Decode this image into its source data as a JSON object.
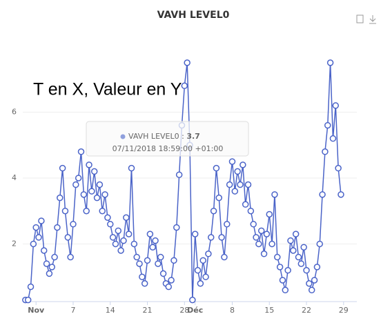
{
  "chart_data": {
    "type": "line",
    "title": "VAVH LEVEL0",
    "annotation": "T en X, Valeur en Y",
    "tooltip": {
      "series": "VAVH LEVEL0",
      "value": 3.7,
      "time": "07/11/2018 18:59:00 +01:00"
    },
    "x": [
      -2,
      -1.5,
      -1,
      -0.5,
      0,
      0.5,
      1,
      1.5,
      2,
      2.5,
      3,
      3.5,
      4,
      4.5,
      5,
      5.5,
      6,
      6.5,
      7,
      7.5,
      8,
      8.5,
      9,
      9.5,
      10,
      10.5,
      11,
      11.5,
      12,
      12.5,
      13,
      13.5,
      14,
      14.5,
      15,
      15.5,
      16,
      16.5,
      17,
      17.5,
      18,
      18.5,
      19,
      19.5,
      20,
      20.5,
      21,
      21.5,
      22,
      22.5,
      23,
      23.5,
      24,
      24.5,
      25,
      25.5,
      26,
      26.5,
      27,
      27.5,
      28,
      28.5,
      29,
      29.5,
      30,
      30.5,
      31,
      31.5,
      32,
      32.5,
      33,
      33.5,
      34,
      34.5,
      35,
      35.5,
      36,
      36.5,
      37,
      37.5,
      38,
      38.5,
      39,
      39.5,
      40,
      40.5,
      41,
      41.5,
      42,
      42.5,
      43,
      43.5,
      44,
      44.5,
      45,
      45.5,
      46,
      46.5,
      47,
      47.5,
      48,
      48.5,
      49,
      49.5,
      50,
      50.5,
      51,
      51.5,
      52,
      52.5,
      53,
      53.5,
      54,
      54.5,
      55,
      55.5,
      56,
      56.5,
      57,
      57.5
    ],
    "series": [
      {
        "name": "VAVH LEVEL0",
        "color": "#4a63c8",
        "values": [
          0.3,
          0.3,
          0.7,
          2.0,
          2.5,
          2.2,
          2.7,
          1.8,
          1.4,
          1.1,
          1.3,
          1.6,
          2.5,
          3.4,
          4.3,
          3.0,
          2.2,
          1.6,
          2.6,
          3.8,
          4.0,
          4.8,
          3.5,
          3.0,
          4.4,
          3.6,
          4.2,
          3.4,
          3.8,
          3.0,
          3.5,
          2.8,
          2.6,
          2.2,
          2.0,
          2.4,
          1.8,
          2.1,
          2.8,
          2.3,
          4.3,
          2.0,
          1.6,
          1.4,
          1.0,
          0.8,
          1.5,
          2.3,
          1.9,
          2.1,
          1.4,
          1.6,
          1.1,
          0.8,
          0.7,
          0.9,
          1.5,
          2.5,
          4.1,
          5.6,
          6.8,
          7.5,
          5.0,
          0.3,
          2.3,
          1.2,
          0.8,
          1.5,
          1.0,
          1.7,
          2.2,
          3.0,
          4.3,
          3.4,
          2.2,
          1.6,
          2.6,
          3.8,
          4.5,
          3.6,
          4.2,
          3.8,
          4.4,
          3.2,
          3.8,
          3.0,
          2.6,
          2.2,
          2.0,
          2.4,
          1.7,
          2.3,
          2.9,
          2.0,
          3.5,
          1.6,
          1.3,
          0.9,
          0.6,
          1.2,
          2.1,
          1.8,
          2.3,
          1.6,
          1.4,
          1.9,
          1.2,
          0.8,
          0.6,
          0.9,
          1.3,
          2.0,
          3.5,
          4.8,
          5.6,
          7.5,
          5.2,
          6.2,
          4.3,
          3.5
        ]
      }
    ],
    "xlim": [
      -2.5,
      60.5
    ],
    "xticks": [
      {
        "value": 0,
        "label": "Nov"
      },
      7,
      14,
      21,
      28,
      {
        "value": 30,
        "label": "Déc"
      },
      {
        "value": 37,
        "label": "8"
      },
      {
        "value": 44,
        "label": "15"
      },
      {
        "value": 51,
        "label": "22"
      },
      {
        "value": 58,
        "label": "29"
      }
    ],
    "ylim": [
      0.25,
      8
    ],
    "yticks": [
      2,
      4,
      6
    ],
    "grid": true
  }
}
